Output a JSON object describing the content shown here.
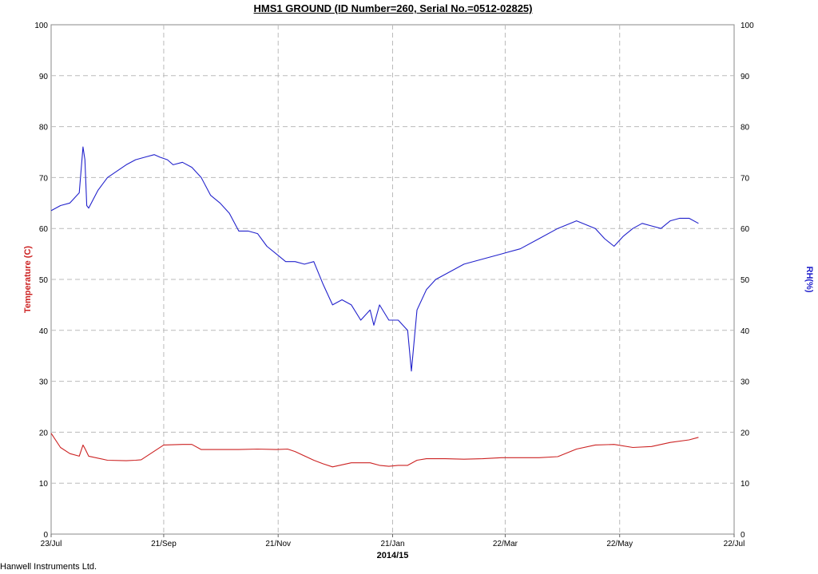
{
  "title": "HMS1 GROUND (ID Number=260, Serial No.=0512-02825)",
  "footer": "Hanwell Instruments Ltd.",
  "chart_data": {
    "type": "line",
    "title": "HMS1 GROUND (ID Number=260, Serial No.=0512-02825)",
    "xlabel": "2014/15",
    "ylabel_left": "Temperature (C)",
    "ylabel_right": "RH(%)",
    "ylim": [
      0,
      100
    ],
    "y_ticks": [
      0,
      10,
      20,
      30,
      40,
      50,
      60,
      70,
      80,
      90,
      100
    ],
    "x_ticks": [
      "23/Jul",
      "21/Sep",
      "21/Nov",
      "21/Jan",
      "22/Mar",
      "22/May",
      "22/Jul"
    ],
    "x_ticks_day_index": [
      0,
      60,
      121,
      182,
      242,
      303,
      364
    ],
    "grid": true,
    "series": [
      {
        "name": "Temperature (C)",
        "axis": "left",
        "color": "#cc2222",
        "day_index": [
          0,
          5,
          10,
          15,
          17,
          18,
          20,
          30,
          40,
          45,
          48,
          60,
          70,
          75,
          80,
          90,
          100,
          110,
          120,
          126,
          130,
          140,
          145,
          150,
          160,
          170,
          175,
          180,
          185,
          190,
          195,
          200,
          210,
          220,
          230,
          240,
          250,
          260,
          270,
          280,
          290,
          300,
          310,
          320,
          330,
          340,
          345
        ],
        "values": [
          19.8,
          17.0,
          15.8,
          15.3,
          17.5,
          16.8,
          15.3,
          14.5,
          14.4,
          14.5,
          14.6,
          17.5,
          17.6,
          17.6,
          16.6,
          16.6,
          16.6,
          16.7,
          16.6,
          16.7,
          16.2,
          14.5,
          13.8,
          13.2,
          14.0,
          14.0,
          13.5,
          13.3,
          13.5,
          13.5,
          14.5,
          14.8,
          14.8,
          14.7,
          14.8,
          15.0,
          15.0,
          15.0,
          15.2,
          16.7,
          17.5,
          17.6,
          17.0,
          17.2,
          18.0,
          18.5,
          19.0
        ]
      },
      {
        "name": "RH(%)",
        "axis": "right",
        "color": "#2222cc",
        "day_index": [
          0,
          5,
          10,
          15,
          17,
          18,
          19,
          20,
          25,
          30,
          40,
          45,
          50,
          55,
          58,
          62,
          65,
          70,
          75,
          80,
          85,
          90,
          95,
          100,
          105,
          110,
          115,
          120,
          125,
          130,
          135,
          140,
          145,
          150,
          155,
          160,
          165,
          170,
          172,
          175,
          180,
          185,
          190,
          192,
          195,
          200,
          205,
          210,
          220,
          230,
          240,
          250,
          260,
          270,
          280,
          290,
          295,
          300,
          305,
          310,
          315,
          320,
          325,
          330,
          335,
          340,
          345
        ],
        "values": [
          63.5,
          64.5,
          65.0,
          67.0,
          76.0,
          73.5,
          64.5,
          64.0,
          67.5,
          70.0,
          72.5,
          73.5,
          74.0,
          74.5,
          74.0,
          73.5,
          72.5,
          73.0,
          72.0,
          70.0,
          66.5,
          65.0,
          63.0,
          59.5,
          59.5,
          59.0,
          56.5,
          55.0,
          53.5,
          53.5,
          53.0,
          53.5,
          49.0,
          45.0,
          46.0,
          45.0,
          42.0,
          44.0,
          41.0,
          45.0,
          42.0,
          42.0,
          40.0,
          32.0,
          44.0,
          48.0,
          50.0,
          51.0,
          53.0,
          54.0,
          55.0,
          56.0,
          58.0,
          60.0,
          61.5,
          60.0,
          58.0,
          56.5,
          58.5,
          60.0,
          61.0,
          60.5,
          60.0,
          61.5,
          62.0,
          62.0,
          61.0
        ]
      }
    ]
  }
}
